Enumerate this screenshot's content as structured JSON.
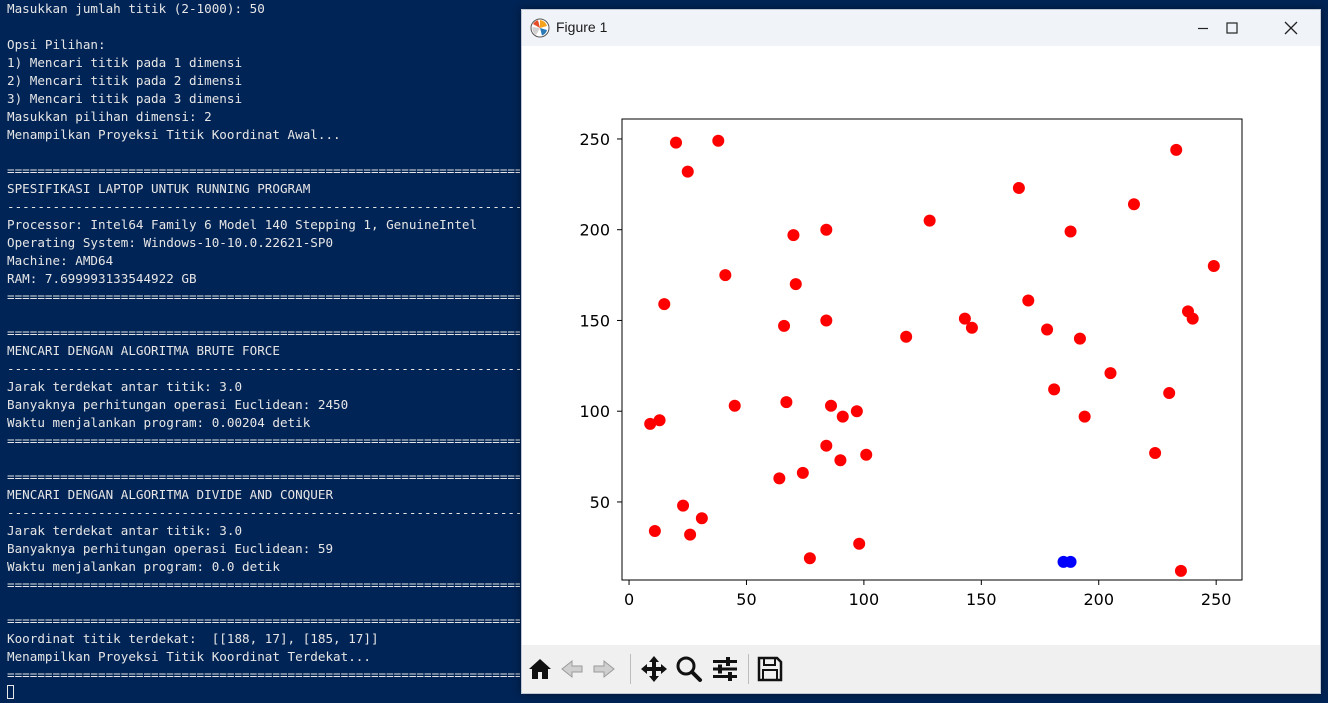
{
  "terminal": {
    "lines": [
      "Masukkan jumlah titik (2-1000): 50",
      "",
      "Opsi Pilihan:",
      "1) Mencari titik pada 1 dimensi",
      "2) Mencari titik pada 2 dimensi",
      "3) Mencari titik pada 3 dimensi",
      "Masukkan pilihan dimensi: 2",
      "Menampilkan Proyeksi Titik Koordinat Awal...",
      "",
      "======================================================================",
      "SPESIFIKASI LAPTOP UNTUK RUNNING PROGRAM",
      "----------------------------------------------------------------------",
      "Processor: Intel64 Family 6 Model 140 Stepping 1, GenuineIntel",
      "Operating System: Windows-10-10.0.22621-SP0",
      "Machine: AMD64",
      "RAM: 7.699993133544922 GB",
      "======================================================================",
      "",
      "======================================================================",
      "MENCARI DENGAN ALGORITMA BRUTE FORCE",
      "----------------------------------------------------------------------",
      "Jarak terdekat antar titik: 3.0",
      "Banyaknya perhitungan operasi Euclidean: 2450",
      "Waktu menjalankan program: 0.00204 detik",
      "======================================================================",
      "",
      "======================================================================",
      "MENCARI DENGAN ALGORITMA DIVIDE AND CONQUER",
      "----------------------------------------------------------------------",
      "Jarak terdekat antar titik: 3.0",
      "Banyaknya perhitungan operasi Euclidean: 59",
      "Waktu menjalankan program: 0.0 detik",
      "======================================================================",
      "",
      "======================================================================",
      "Koordinat titik terdekat:  [[188, 17], [185, 17]]",
      "Menampilkan Proyeksi Titik Koordinat Terdekat...",
      "======================================================================"
    ]
  },
  "figure_window": {
    "title": "Figure 1",
    "toolbar": [
      "home-icon",
      "back-icon",
      "forward-icon",
      "pan-icon",
      "zoom-icon",
      "configure-subplots-icon",
      "save-icon"
    ]
  },
  "chart_data": {
    "type": "scatter",
    "xlim": [
      -3,
      261
    ],
    "ylim": [
      7,
      261
    ],
    "xticks": [
      0,
      50,
      100,
      150,
      200,
      250
    ],
    "yticks": [
      50,
      100,
      150,
      200,
      250
    ],
    "title": "",
    "xlabel": "",
    "ylabel": "",
    "grid": false,
    "series": [
      {
        "color": "#ff0000",
        "points": [
          [
            20,
            248
          ],
          [
            38,
            249
          ],
          [
            25,
            232
          ],
          [
            233,
            244
          ],
          [
            166,
            223
          ],
          [
            215,
            214
          ],
          [
            128,
            205
          ],
          [
            188,
            199
          ],
          [
            84,
            200
          ],
          [
            70,
            197
          ],
          [
            41,
            175
          ],
          [
            71,
            170
          ],
          [
            249,
            180
          ],
          [
            170,
            161
          ],
          [
            15,
            159
          ],
          [
            238,
            155
          ],
          [
            240,
            151
          ],
          [
            143,
            151
          ],
          [
            146,
            146
          ],
          [
            84,
            150
          ],
          [
            66,
            147
          ],
          [
            178,
            145
          ],
          [
            118,
            141
          ],
          [
            192,
            140
          ],
          [
            205,
            121
          ],
          [
            181,
            112
          ],
          [
            230,
            110
          ],
          [
            67,
            105
          ],
          [
            45,
            103
          ],
          [
            86,
            103
          ],
          [
            97,
            100
          ],
          [
            91,
            97
          ],
          [
            194,
            97
          ],
          [
            13,
            95
          ],
          [
            9,
            93
          ],
          [
            84,
            81
          ],
          [
            224,
            77
          ],
          [
            101,
            76
          ],
          [
            90,
            73
          ],
          [
            74,
            66
          ],
          [
            64,
            63
          ],
          [
            23,
            48
          ],
          [
            31,
            41
          ],
          [
            11,
            34
          ],
          [
            26,
            32
          ],
          [
            98,
            27
          ],
          [
            77,
            19
          ],
          [
            235,
            12
          ]
        ]
      },
      {
        "color": "#0000ff",
        "points": [
          [
            185,
            17
          ],
          [
            188,
            17
          ]
        ]
      }
    ]
  }
}
